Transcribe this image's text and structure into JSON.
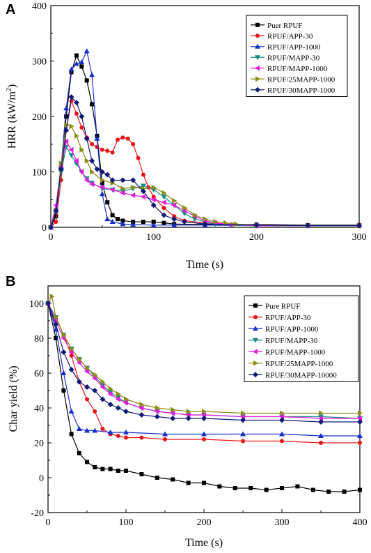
{
  "figure": {
    "panels": [
      {
        "letter": "A"
      },
      {
        "letter": "B"
      }
    ]
  },
  "chart_data": [
    {
      "type": "line",
      "panel": "A",
      "title": "",
      "xlabel": "Time (s)",
      "ylabel": "HRR (kW/m²)",
      "ylabel_parts": {
        "main": "HRR (kW/m",
        "sup": "2",
        "end": ")"
      },
      "xlim": [
        0,
        300
      ],
      "ylim": [
        0,
        400
      ],
      "xticks": [
        0,
        100,
        200,
        300
      ],
      "yticks": [
        0,
        100,
        200,
        300,
        400
      ],
      "grid": false,
      "legend_position": "top-right",
      "series": [
        {
          "name": "Puer RPUF",
          "color": "#000000",
          "marker": "square",
          "x": [
            0,
            5,
            10,
            15,
            20,
            25,
            30,
            35,
            40,
            45,
            50,
            55,
            60,
            65,
            70,
            80,
            90,
            100,
            110,
            120,
            150,
            200,
            250,
            300
          ],
          "y": [
            0,
            20,
            105,
            200,
            280,
            310,
            290,
            265,
            222,
            165,
            80,
            45,
            22,
            15,
            12,
            10,
            10,
            10,
            8,
            6,
            5,
            5,
            4,
            4
          ]
        },
        {
          "name": "RPUF/APP-30",
          "color": "#e8141a",
          "marker": "circle",
          "x": [
            0,
            5,
            10,
            15,
            20,
            25,
            30,
            35,
            40,
            45,
            50,
            55,
            60,
            65,
            70,
            75,
            80,
            85,
            90,
            95,
            100,
            110,
            120,
            130,
            150,
            175,
            200,
            250,
            300
          ],
          "y": [
            0,
            10,
            85,
            175,
            228,
            205,
            180,
            162,
            150,
            145,
            140,
            138,
            135,
            158,
            162,
            160,
            150,
            125,
            95,
            72,
            55,
            35,
            20,
            12,
            8,
            5,
            3,
            3,
            3
          ]
        },
        {
          "name": "RPUF/APP-1000",
          "color": "#1630c8",
          "marker": "triangle-up",
          "x": [
            0,
            5,
            10,
            15,
            20,
            25,
            30,
            35,
            40,
            45,
            50,
            55,
            60,
            70,
            80,
            100,
            120,
            150,
            200,
            250,
            300
          ],
          "y": [
            0,
            30,
            110,
            215,
            285,
            295,
            298,
            318,
            275,
            160,
            60,
            15,
            10,
            6,
            5,
            4,
            4,
            4,
            3,
            3,
            3
          ]
        },
        {
          "name": "RPUF/MAPP-30",
          "color": "#138a8a",
          "marker": "triangle-down",
          "x": [
            0,
            5,
            10,
            15,
            20,
            25,
            30,
            35,
            40,
            50,
            60,
            70,
            80,
            90,
            100,
            110,
            120,
            130,
            140,
            150,
            160,
            175,
            200,
            250,
            300
          ],
          "y": [
            0,
            30,
            100,
            145,
            130,
            115,
            100,
            88,
            80,
            70,
            68,
            65,
            70,
            75,
            68,
            55,
            40,
            25,
            15,
            10,
            6,
            4,
            3,
            3,
            3
          ]
        },
        {
          "name": "RPUF/MAPP-1000",
          "color": "#e81ae0",
          "marker": "triangle-left",
          "x": [
            0,
            5,
            10,
            15,
            20,
            25,
            30,
            35,
            40,
            50,
            60,
            70,
            80,
            90,
            100,
            110,
            120,
            130,
            140,
            150,
            160,
            175,
            200,
            250,
            300
          ],
          "y": [
            0,
            40,
            110,
            155,
            140,
            120,
            100,
            85,
            78,
            72,
            68,
            62,
            58,
            55,
            50,
            45,
            40,
            30,
            20,
            12,
            8,
            5,
            3,
            3,
            3
          ]
        },
        {
          "name": "RPUF/25MAPP-1000",
          "color": "#8c8c14",
          "marker": "triangle-right",
          "x": [
            0,
            5,
            10,
            15,
            20,
            25,
            30,
            35,
            40,
            50,
            60,
            70,
            80,
            90,
            100,
            110,
            120,
            130,
            140,
            150,
            160,
            170,
            180,
            200,
            250,
            300
          ],
          "y": [
            0,
            30,
            115,
            185,
            182,
            165,
            140,
            120,
            100,
            85,
            80,
            70,
            72,
            70,
            72,
            62,
            48,
            35,
            22,
            15,
            10,
            8,
            6,
            4,
            3,
            3
          ]
        },
        {
          "name": "RPUF/30MAPP-1000",
          "color": "#121a78",
          "marker": "diamond",
          "x": [
            0,
            5,
            10,
            15,
            20,
            25,
            30,
            35,
            40,
            45,
            50,
            55,
            60,
            70,
            80,
            90,
            100,
            110,
            120,
            130,
            150,
            200,
            250,
            300
          ],
          "y": [
            0,
            30,
            105,
            175,
            235,
            225,
            200,
            160,
            120,
            105,
            100,
            95,
            85,
            85,
            85,
            65,
            40,
            22,
            15,
            10,
            6,
            4,
            3,
            3
          ]
        }
      ]
    },
    {
      "type": "line",
      "panel": "B",
      "title": "",
      "xlabel": "Time (s)",
      "ylabel": "Char yield (%)",
      "xlim": [
        0,
        400
      ],
      "ylim": [
        -20,
        110
      ],
      "xticks": [
        0,
        100,
        200,
        300,
        400
      ],
      "yticks": [
        -20,
        0,
        20,
        40,
        60,
        80,
        100
      ],
      "grid": false,
      "legend_position": "top-right",
      "series": [
        {
          "name": "Pure RPUF",
          "color": "#000000",
          "marker": "square",
          "x": [
            0,
            10,
            20,
            30,
            40,
            50,
            60,
            70,
            80,
            90,
            100,
            120,
            140,
            160,
            180,
            200,
            220,
            240,
            260,
            280,
            300,
            320,
            340,
            360,
            380,
            400
          ],
          "y": [
            100,
            80,
            50,
            25,
            14,
            9,
            6,
            5,
            5,
            4,
            4,
            2,
            0,
            -1,
            -3,
            -3,
            -5,
            -6,
            -6,
            -7,
            -6,
            -5,
            -7,
            -8,
            -8,
            -7
          ]
        },
        {
          "name": "RPUF/APP-30",
          "color": "#e8141a",
          "marker": "circle",
          "x": [
            0,
            10,
            20,
            30,
            40,
            50,
            60,
            70,
            80,
            90,
            100,
            120,
            150,
            200,
            250,
            300,
            350,
            400
          ],
          "y": [
            100,
            92,
            82,
            70,
            55,
            45,
            38,
            28,
            25,
            24,
            23,
            23,
            22,
            22,
            21,
            21,
            20,
            20
          ]
        },
        {
          "name": "RPUF/APP-1000",
          "color": "#1630c8",
          "marker": "triangle-up",
          "x": [
            0,
            10,
            20,
            30,
            40,
            50,
            60,
            80,
            100,
            150,
            200,
            250,
            300,
            350,
            400
          ],
          "y": [
            100,
            85,
            60,
            38,
            28,
            27,
            27,
            26,
            26,
            25,
            25,
            25,
            25,
            24,
            24
          ]
        },
        {
          "name": "RPUF/MAPP-30",
          "color": "#138a8a",
          "marker": "triangle-down",
          "x": [
            0,
            10,
            20,
            30,
            40,
            50,
            60,
            70,
            80,
            90,
            100,
            120,
            140,
            160,
            180,
            200,
            250,
            300,
            350,
            400
          ],
          "y": [
            100,
            92,
            82,
            74,
            68,
            63,
            58,
            53,
            49,
            46,
            43,
            40,
            38,
            37,
            36,
            36,
            35,
            35,
            35,
            34
          ]
        },
        {
          "name": "RPUF/MAPP-1000",
          "color": "#e81ae0",
          "marker": "triangle-left",
          "x": [
            0,
            10,
            20,
            30,
            40,
            50,
            60,
            70,
            80,
            90,
            100,
            120,
            140,
            160,
            180,
            200,
            250,
            300,
            350,
            400
          ],
          "y": [
            100,
            90,
            80,
            72,
            66,
            61,
            57,
            52,
            48,
            45,
            43,
            40,
            38,
            37,
            36,
            36,
            35,
            35,
            34,
            34
          ]
        },
        {
          "name": "RPUF/25MAPP-1000",
          "color": "#8c8c14",
          "marker": "triangle-right",
          "x": [
            0,
            5,
            10,
            20,
            30,
            40,
            50,
            60,
            70,
            80,
            90,
            100,
            120,
            140,
            160,
            180,
            200,
            250,
            300,
            350,
            400
          ],
          "y": [
            100,
            104,
            92,
            82,
            74,
            68,
            63,
            59,
            55,
            51,
            48,
            45,
            42,
            40,
            39,
            38,
            38,
            37,
            37,
            37,
            37
          ]
        },
        {
          "name": "RPUF/30MAPP-10000",
          "color": "#121a78",
          "marker": "diamond",
          "x": [
            0,
            10,
            20,
            30,
            40,
            50,
            60,
            70,
            80,
            90,
            100,
            120,
            140,
            160,
            180,
            200,
            250,
            300,
            350,
            400
          ],
          "y": [
            100,
            88,
            72,
            62,
            55,
            52,
            50,
            45,
            42,
            40,
            38,
            36,
            35,
            34,
            34,
            34,
            33,
            33,
            32,
            32
          ]
        }
      ]
    }
  ]
}
